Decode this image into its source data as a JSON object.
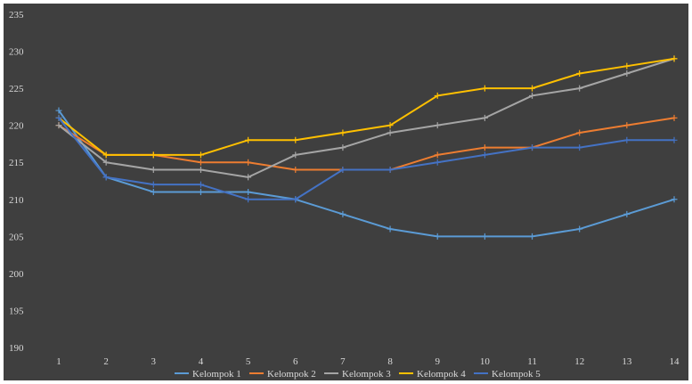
{
  "chart_data": {
    "type": "line",
    "title": "",
    "xlabel": "",
    "ylabel": "",
    "ylim": [
      190,
      235
    ],
    "yticks": [
      190,
      195,
      200,
      205,
      210,
      215,
      220,
      225,
      230,
      235
    ],
    "categories": [
      "1",
      "2",
      "3",
      "4",
      "5",
      "6",
      "7",
      "8",
      "9",
      "10",
      "11",
      "12",
      "13",
      "14"
    ],
    "grid": false,
    "legend_position": "bottom",
    "series": [
      {
        "name": "Kelompok 1",
        "color": "#5b9bd5",
        "values": [
          222,
          213,
          211,
          211,
          211,
          210,
          208,
          206,
          205,
          205,
          205,
          206,
          208,
          210
        ]
      },
      {
        "name": "Kelompok 2",
        "color": "#ed7d31",
        "values": [
          220,
          216,
          216,
          215,
          215,
          214,
          214,
          214,
          216,
          217,
          217,
          219,
          220,
          221
        ]
      },
      {
        "name": "Kelompok 3",
        "color": "#a5a5a5",
        "values": [
          220,
          215,
          214,
          214,
          213,
          216,
          217,
          219,
          220,
          221,
          224,
          225,
          227,
          229
        ]
      },
      {
        "name": "Kelompok 4",
        "color": "#ffc000",
        "values": [
          221,
          216,
          216,
          216,
          218,
          218,
          219,
          220,
          224,
          225,
          225,
          227,
          228,
          229
        ]
      },
      {
        "name": "Kelompok 5",
        "color": "#4472c4",
        "values": [
          221,
          213,
          212,
          212,
          210,
          210,
          214,
          214,
          215,
          216,
          217,
          217,
          218,
          218
        ]
      }
    ]
  }
}
